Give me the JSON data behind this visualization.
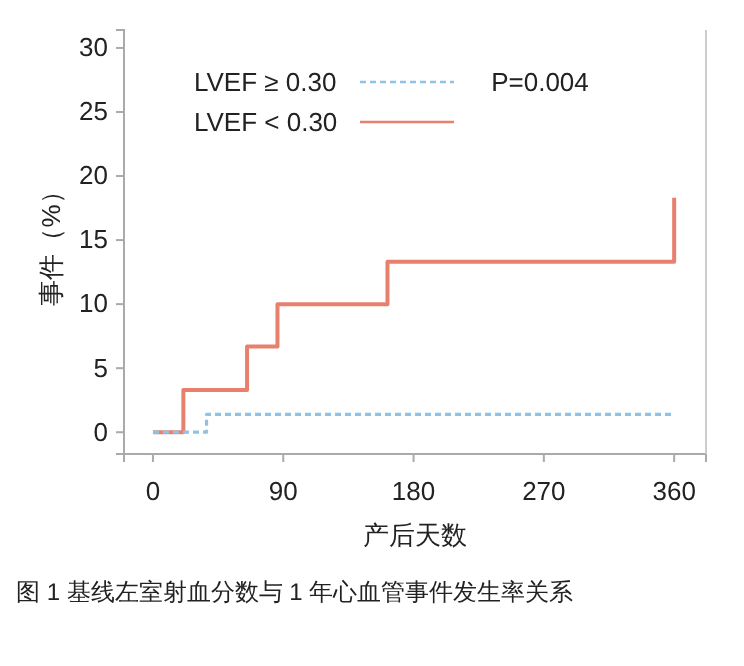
{
  "chart_data": {
    "type": "step",
    "xlabel": "产后天数",
    "ylabel": "事件（%）",
    "xlim": [
      -20,
      382
    ],
    "xticks": [
      0,
      90,
      180,
      270,
      360
    ],
    "ylim": [
      -1.7,
      31.4
    ],
    "yticks": [
      0,
      5,
      10,
      15,
      20,
      25,
      30
    ],
    "grid": false,
    "legend": "top left",
    "annotations": [
      "P=0.004",
      "图 1 基线左室射血分数与 1 年心血管事件发生率关系"
    ],
    "series": [
      {
        "name": "LVEF ≥ 0.30",
        "color": "#8fc3e6",
        "line_style": "dashed",
        "x": [
          0,
          37,
          360
        ],
        "values": [
          0,
          1.4,
          1.4
        ]
      },
      {
        "name": "LVEF < 0.30",
        "color": "#e8806e",
        "line_style": "solid",
        "x": [
          0,
          21,
          65,
          86,
          162,
          360
        ],
        "values": [
          0,
          3.3,
          6.7,
          10,
          13.3,
          18.3
        ]
      }
    ]
  }
}
